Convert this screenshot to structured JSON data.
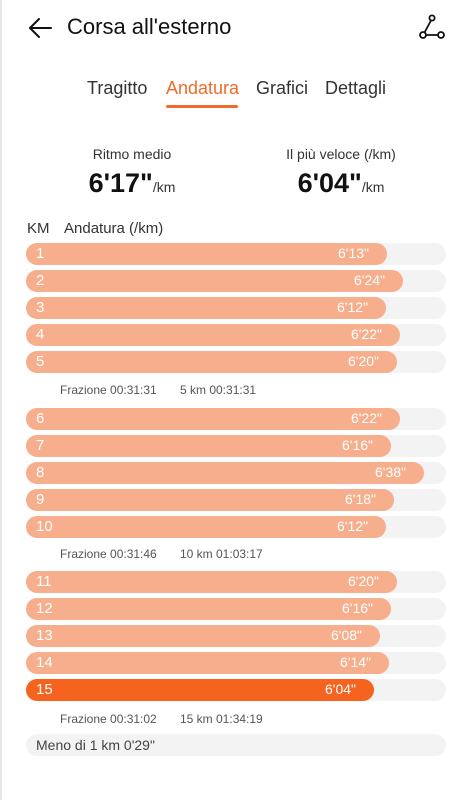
{
  "header": {
    "title": "Corsa all'esterno"
  },
  "tabs": [
    {
      "label": "Tragitto",
      "active": false
    },
    {
      "label": "Andatura",
      "active": true
    },
    {
      "label": "Grafici",
      "active": false
    },
    {
      "label": "Dettagli",
      "active": false
    }
  ],
  "summary": {
    "avg_label": "Ritmo medio",
    "avg_value": "6'17\"",
    "avg_unit": "/km",
    "fast_label": "Il più veloce (/km)",
    "fast_value": "6'04\"",
    "fast_unit": "/km"
  },
  "columns": {
    "km": "KM",
    "pace": "Andatura (/km)"
  },
  "laps": [
    {
      "km": "1",
      "pace": "6'13\"",
      "seconds": 373
    },
    {
      "km": "2",
      "pace": "6'24\"",
      "seconds": 384
    },
    {
      "km": "3",
      "pace": "6'12\"",
      "seconds": 372
    },
    {
      "km": "4",
      "pace": "6'22\"",
      "seconds": 382
    },
    {
      "km": "5",
      "pace": "6'20\"",
      "seconds": 380
    },
    {
      "km": "6",
      "pace": "6'22\"",
      "seconds": 382
    },
    {
      "km": "7",
      "pace": "6'16\"",
      "seconds": 376
    },
    {
      "km": "8",
      "pace": "6'38\"",
      "seconds": 398
    },
    {
      "km": "9",
      "pace": "6'18\"",
      "seconds": 378
    },
    {
      "km": "10",
      "pace": "6'12\"",
      "seconds": 372
    },
    {
      "km": "11",
      "pace": "6'20\"",
      "seconds": 380
    },
    {
      "km": "12",
      "pace": "6'16\"",
      "seconds": 376
    },
    {
      "km": "13",
      "pace": "6'08\"",
      "seconds": 368
    },
    {
      "km": "14",
      "pace": "6'14\"",
      "seconds": 374
    },
    {
      "km": "15",
      "pace": "6'04\"",
      "seconds": 364,
      "fastest": true
    }
  ],
  "splits": [
    {
      "fraction": "Frazione 00:31:31",
      "cumulative": "5 km 00:31:31"
    },
    {
      "fraction": "Frazione 00:31:46",
      "cumulative": "10 km 01:03:17"
    },
    {
      "fraction": "Frazione 00:31:02",
      "cumulative": "15 km 01:34:19"
    }
  ],
  "remainder": "Meno di 1 km 0'29\"",
  "colors": {
    "accent": "#f06a2a",
    "bar": "#f6ae8c",
    "bar_fastest": "#f5631f",
    "track": "#f3f3f3"
  },
  "icons": {
    "back": "arrow-left-icon",
    "route": "route-icon"
  }
}
